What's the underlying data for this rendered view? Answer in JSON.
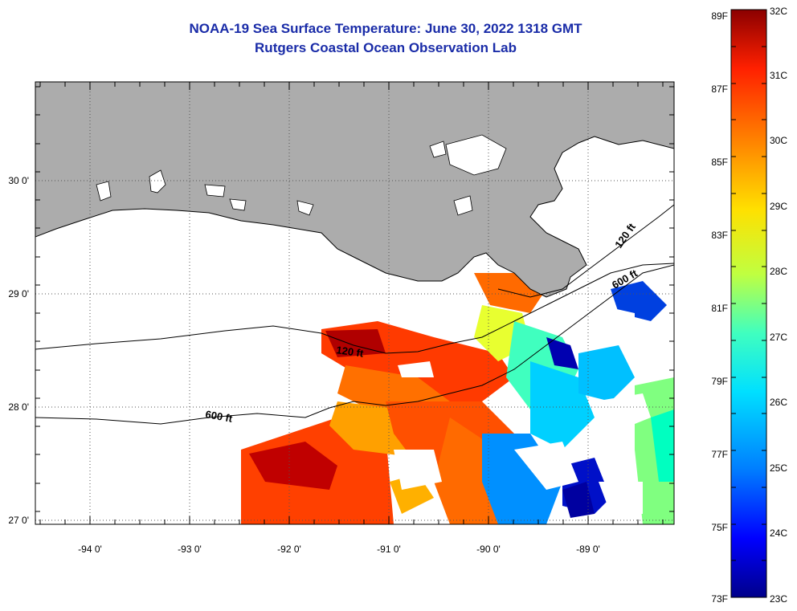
{
  "header": {
    "title": "NOAA-19 Sea Surface Temperature:  June 30, 2022 1318 GMT",
    "subtitle": "Rutgers Coastal Ocean Observation Lab"
  },
  "map": {
    "lon_labels": [
      "-94 0'",
      "-93 0'",
      "-92 0'",
      "-91 0'",
      "-90 0'",
      "-89 0'"
    ],
    "lat_labels": [
      "30 0'",
      "29 0'",
      "28 0'",
      "27 0'"
    ],
    "contours": [
      {
        "label": "120 ft",
        "depth_ft": 120
      },
      {
        "label": "600 ft",
        "depth_ft": 600
      },
      {
        "label": "120 ft",
        "depth_ft": 120
      },
      {
        "label": "600 ft",
        "depth_ft": 600
      }
    ],
    "colors": {
      "land": "#acacac",
      "cloud": "#ffffff",
      "coast": "#000000",
      "grid": "#555555"
    }
  },
  "colorbar": {
    "fahrenheit_labels": [
      "89F",
      "87F",
      "85F",
      "83F",
      "81F",
      "79F",
      "77F",
      "75F",
      "73F"
    ],
    "celsius_labels": [
      "32C",
      "31C",
      "30C",
      "29C",
      "28C",
      "27C",
      "26C",
      "25C",
      "24C",
      "23C"
    ],
    "palette": [
      "#00008a",
      "#0000ff",
      "#0080ff",
      "#00e0ff",
      "#40ffbf",
      "#c0ff40",
      "#ffe000",
      "#ff8000",
      "#ff2000",
      "#8b0000"
    ]
  }
}
